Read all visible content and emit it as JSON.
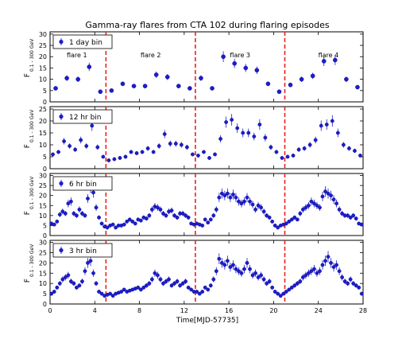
{
  "chart_data": {
    "type": "scatter",
    "title": "Gamma-ray flares from CTA 102 during flaring episodes",
    "xlabel": "Time[MJD-57735]",
    "ylabel_main": "F",
    "ylabel_sub": "0.1 - 300 GeV",
    "xlim": [
      0,
      28
    ],
    "xticks": [
      "0",
      "4",
      "8",
      "12",
      "16",
      "20",
      "24",
      "28"
    ],
    "marker_color": "#1c1ccf",
    "separator_color": "#e8221f",
    "separators": [
      5,
      13,
      21
    ],
    "flare_labels": [
      {
        "text": "flare 1",
        "x": 2.4
      },
      {
        "text": "flare 2",
        "x": 9.0
      },
      {
        "text": "flare 3",
        "x": 17.0
      },
      {
        "text": "flare 4",
        "x": 24.9
      }
    ],
    "panels": [
      {
        "legend": "1 day bin",
        "ylim": [
          0,
          31
        ],
        "yticks": [
          "0",
          "5",
          "10",
          "15",
          "20",
          "25",
          "30"
        ],
        "x": [
          0.5,
          1.5,
          2.5,
          3.5,
          4.5,
          5.5,
          6.5,
          7.5,
          8.5,
          9.5,
          10.5,
          11.5,
          12.5,
          13.5,
          14.5,
          15.5,
          16.5,
          17.5,
          18.5,
          19.5,
          20.5,
          21.5,
          22.5,
          23.5,
          24.5,
          25.5,
          26.5,
          27.5
        ],
        "y": [
          6,
          10.5,
          10,
          15.5,
          4.5,
          5,
          8,
          7,
          7,
          12,
          11,
          7,
          6,
          10.5,
          6,
          20,
          17,
          15,
          14,
          8,
          4.5,
          7.5,
          10,
          11.5,
          18,
          18.5,
          10,
          6.5
        ]
      },
      {
        "legend": "12 hr bin",
        "ylim": [
          0,
          26
        ],
        "yticks": [
          "0",
          "5",
          "10",
          "15",
          "20",
          "25"
        ],
        "x": [
          0.25,
          0.75,
          1.25,
          1.75,
          2.25,
          2.75,
          3.25,
          3.75,
          4.25,
          4.75,
          5.25,
          5.75,
          6.25,
          6.75,
          7.25,
          7.75,
          8.25,
          8.75,
          9.25,
          9.75,
          10.25,
          10.75,
          11.25,
          11.75,
          12.25,
          12.75,
          13.25,
          13.75,
          14.25,
          14.75,
          15.25,
          15.75,
          16.25,
          16.75,
          17.25,
          17.75,
          18.25,
          18.75,
          19.25,
          19.75,
          20.25,
          20.75,
          21.25,
          21.75,
          22.25,
          22.75,
          23.25,
          23.75,
          24.25,
          24.75,
          25.25,
          25.75,
          26.25,
          26.75,
          27.25,
          27.75
        ],
        "y": [
          6,
          7,
          11.5,
          9.5,
          8,
          12,
          9.5,
          18,
          9,
          5,
          3.5,
          4,
          4.5,
          5,
          7,
          6.5,
          7,
          8.5,
          7,
          9.5,
          14.5,
          10.5,
          10.5,
          10,
          9,
          6,
          5.5,
          7,
          4.5,
          6,
          12.5,
          19.5,
          20.5,
          17,
          15,
          15,
          13.5,
          18.5,
          13,
          9,
          7,
          4.5,
          5,
          5.5,
          8,
          8.5,
          10,
          12,
          18,
          18.5,
          20,
          15,
          10,
          8.5,
          7.5,
          5.5
        ]
      },
      {
        "legend": "6 hr bin",
        "ylim": [
          0,
          31
        ],
        "yticks": [
          "0",
          "5",
          "10",
          "15",
          "20",
          "25",
          "30"
        ],
        "x": [
          0.125,
          0.375,
          0.625,
          0.875,
          1.125,
          1.375,
          1.625,
          1.875,
          2.125,
          2.375,
          2.625,
          2.875,
          3.125,
          3.375,
          3.625,
          3.875,
          4.125,
          4.375,
          4.625,
          4.875,
          5.125,
          5.375,
          5.625,
          5.875,
          6.125,
          6.375,
          6.625,
          6.875,
          7.125,
          7.375,
          7.625,
          7.875,
          8.125,
          8.375,
          8.625,
          8.875,
          9.125,
          9.375,
          9.625,
          9.875,
          10.125,
          10.375,
          10.625,
          10.875,
          11.125,
          11.375,
          11.625,
          11.875,
          12.125,
          12.375,
          12.625,
          12.875,
          13.125,
          13.375,
          13.625,
          13.875,
          14.125,
          14.375,
          14.625,
          14.875,
          15.125,
          15.375,
          15.625,
          15.875,
          16.125,
          16.375,
          16.625,
          16.875,
          17.125,
          17.375,
          17.625,
          17.875,
          18.125,
          18.375,
          18.625,
          18.875,
          19.125,
          19.375,
          19.625,
          19.875,
          20.125,
          20.375,
          20.625,
          20.875,
          21.125,
          21.375,
          21.625,
          21.875,
          22.125,
          22.375,
          22.625,
          22.875,
          23.125,
          23.375,
          23.625,
          23.875,
          24.125,
          24.375,
          24.625,
          24.875,
          25.125,
          25.375,
          25.625,
          25.875,
          26.125,
          26.375,
          26.625,
          26.875,
          27.125,
          27.375,
          27.625,
          27.875
        ],
        "y": [
          6,
          5.5,
          7,
          10.5,
          12,
          11,
          16,
          17,
          11,
          10,
          13,
          11,
          10,
          18.5,
          24,
          21.5,
          14,
          9,
          6,
          4.5,
          4,
          5,
          5.5,
          4,
          5,
          5,
          5.5,
          7,
          8,
          7,
          6,
          8,
          7.5,
          9,
          8.5,
          10,
          13,
          14.5,
          14,
          13,
          11,
          10,
          12,
          12.5,
          10,
          9,
          11,
          11,
          10,
          9,
          6,
          5.5,
          6,
          5.5,
          5,
          8,
          6.5,
          8,
          10,
          13,
          19,
          21,
          20,
          21,
          19,
          20.5,
          19,
          17,
          16,
          17,
          19,
          17,
          15.5,
          13,
          15,
          14,
          12,
          10,
          9,
          7,
          5,
          4,
          5,
          5.5,
          6,
          7,
          8,
          9,
          8,
          11,
          13,
          14,
          15,
          17,
          16,
          15,
          14,
          19.5,
          22,
          21,
          20,
          18,
          16,
          13,
          11,
          10,
          10,
          9,
          10,
          8.5,
          6,
          5.5
        ]
      },
      {
        "legend": "3 hr bin",
        "ylim": [
          0,
          31
        ],
        "yticks": [
          "0",
          "5",
          "10",
          "15",
          "20",
          "25",
          "30"
        ],
        "x": [
          0.125,
          0.375,
          0.625,
          0.875,
          1.125,
          1.375,
          1.625,
          1.875,
          2.125,
          2.375,
          2.625,
          2.875,
          3.125,
          3.375,
          3.625,
          3.875,
          4.125,
          4.375,
          4.625,
          4.875,
          5.125,
          5.375,
          5.625,
          5.875,
          6.125,
          6.375,
          6.625,
          6.875,
          7.125,
          7.375,
          7.625,
          7.875,
          8.125,
          8.375,
          8.625,
          8.875,
          9.125,
          9.375,
          9.625,
          9.875,
          10.125,
          10.375,
          10.625,
          10.875,
          11.125,
          11.375,
          11.625,
          11.875,
          12.125,
          12.375,
          12.625,
          12.875,
          13.125,
          13.375,
          13.625,
          13.875,
          14.125,
          14.375,
          14.625,
          14.875,
          15.125,
          15.375,
          15.625,
          15.875,
          16.125,
          16.375,
          16.625,
          16.875,
          17.125,
          17.375,
          17.625,
          17.875,
          18.125,
          18.375,
          18.625,
          18.875,
          19.125,
          19.375,
          19.625,
          19.875,
          20.125,
          20.375,
          20.625,
          20.875,
          21.125,
          21.375,
          21.625,
          21.875,
          22.125,
          22.375,
          22.625,
          22.875,
          23.125,
          23.375,
          23.625,
          23.875,
          24.125,
          24.375,
          24.625,
          24.875,
          25.125,
          25.375,
          25.625,
          25.875,
          26.125,
          26.375,
          26.625,
          26.875,
          27.125,
          27.375,
          27.625,
          27.875
        ],
        "y": [
          5,
          6,
          8,
          10,
          12,
          13,
          14,
          11,
          10,
          8,
          9,
          11,
          16,
          20,
          21,
          15,
          10,
          6,
          5,
          4,
          4.5,
          5,
          4,
          5,
          5.5,
          6,
          7,
          6,
          6.5,
          7,
          7.5,
          8,
          7,
          8,
          9,
          10,
          12,
          15,
          14,
          12,
          10,
          11,
          12,
          9,
          10,
          11,
          9,
          10,
          11,
          8,
          7,
          6,
          6,
          5,
          6,
          8,
          7,
          9,
          12,
          16,
          22,
          20,
          19,
          21,
          18,
          19,
          17,
          16,
          15,
          17,
          20,
          17,
          14,
          15,
          13,
          14,
          12,
          10,
          11,
          8,
          6,
          5,
          4,
          5,
          6,
          7,
          8,
          9,
          10,
          11,
          13,
          14,
          15,
          16,
          17,
          15,
          16,
          19,
          21,
          23,
          20,
          18,
          19,
          16,
          13,
          11,
          10,
          12,
          10,
          9,
          8,
          5
        ]
      }
    ]
  }
}
